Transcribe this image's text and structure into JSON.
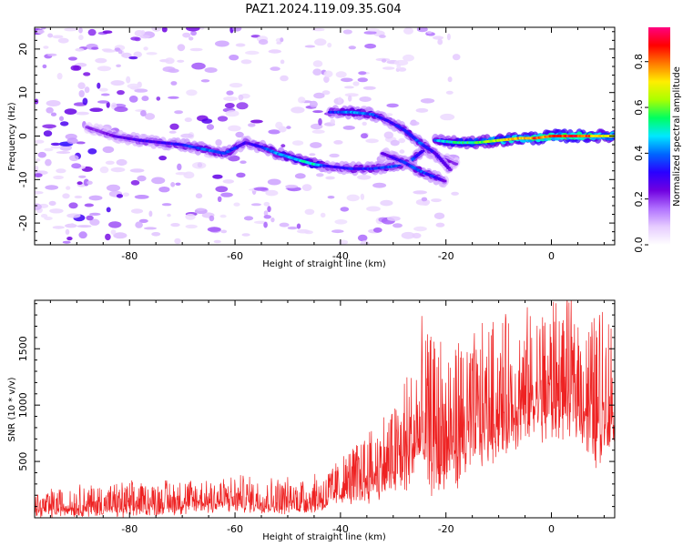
{
  "title": "PAZ1.2024.119.09.35.G04",
  "chart_data": [
    {
      "type": "heatmap",
      "xlabel": "Height of straight line (km)",
      "ylabel": "Frequency (Hz)",
      "xlim": [
        -98,
        12
      ],
      "ylim": [
        -25,
        25
      ],
      "xticks": [
        -80,
        -60,
        -40,
        -20,
        0
      ],
      "yticks": [
        -20,
        -10,
        0,
        10,
        20
      ],
      "colorbar": {
        "label": "Normalized spectral amplitude",
        "range": [
          0,
          0.95
        ],
        "ticks": [
          0.0,
          0.2,
          0.4,
          0.6,
          0.8
        ],
        "colormap": [
          "#ffffff",
          "#e6ccff",
          "#b070ff",
          "#7000e0",
          "#2a00ff",
          "#0066ff",
          "#00e8ff",
          "#00ff60",
          "#aaff00",
          "#ffee00",
          "#ff7a00",
          "#ff0000",
          "#ff0080"
        ]
      },
      "ridges": [
        {
          "x": [
            -88,
            -83,
            -78,
            -74,
            -70,
            -66,
            -62,
            -58,
            -55,
            -52,
            -48,
            -45,
            -42,
            -38,
            -34,
            -30,
            -27,
            -24,
            -21,
            -18
          ],
          "y": [
            2,
            0,
            -1,
            -1.5,
            -2,
            -3,
            -4,
            -1.5,
            -2.5,
            -4,
            -5.5,
            -6.5,
            -7,
            -7.5,
            -7.5,
            -7,
            -6,
            -3,
            -5,
            -6.5
          ],
          "amp": [
            0.2,
            0.25,
            0.3,
            0.3,
            0.35,
            0.4,
            0.4,
            0.3,
            0.35,
            0.45,
            0.5,
            0.55,
            0.3,
            0.35,
            0.35,
            0.4,
            0.4,
            0.3,
            0.3,
            0.2
          ]
        },
        {
          "x": [
            -42,
            -38,
            -34,
            -31,
            -28,
            -25,
            -22,
            -19
          ],
          "y": [
            5.5,
            5.5,
            5,
            3.5,
            1.5,
            -1.5,
            -4,
            -8
          ],
          "amp": [
            0.35,
            0.45,
            0.4,
            0.3,
            0.35,
            0.4,
            0.3,
            0.25
          ]
        },
        {
          "x": [
            -22,
            -18,
            -14,
            -10,
            -6,
            -3,
            0,
            3,
            6,
            9,
            12
          ],
          "y": [
            -1,
            -1.5,
            -1.5,
            -1,
            -0.5,
            -0.5,
            0,
            0,
            0,
            0,
            0
          ],
          "amp": [
            0.45,
            0.55,
            0.6,
            0.7,
            0.8,
            0.85,
            0.85,
            0.9,
            0.9,
            0.75,
            0.7
          ]
        },
        {
          "x": [
            -32,
            -28,
            -25,
            -22,
            -20
          ],
          "y": [
            -4,
            -6,
            -8,
            -9.5,
            -10.5
          ],
          "amp": [
            0.25,
            0.35,
            0.4,
            0.35,
            0.25
          ]
        }
      ]
    },
    {
      "type": "line",
      "xlabel": "Height of straight line (km)",
      "ylabel": "SNR (10 * v/v)",
      "xlim": [
        -98,
        12
      ],
      "ylim": [
        0,
        1930
      ],
      "xticks": [
        -80,
        -60,
        -40,
        -20,
        0
      ],
      "yticks": [
        500,
        1000,
        1500
      ],
      "color": "#ee2222",
      "envelope": {
        "x": [
          -98,
          -90,
          -80,
          -70,
          -60,
          -50,
          -45,
          -43,
          -40,
          -35,
          -30,
          -27,
          -25,
          -20,
          -15,
          -10,
          -5,
          0,
          5,
          8,
          10,
          12
        ],
        "low": [
          0,
          0,
          0,
          20,
          40,
          20,
          30,
          40,
          100,
          120,
          150,
          200,
          250,
          100,
          400,
          500,
          600,
          650,
          700,
          400,
          500,
          550
        ],
        "high": [
          220,
          280,
          300,
          340,
          360,
          340,
          380,
          420,
          520,
          750,
          1000,
          1300,
          1600,
          1550,
          1550,
          1700,
          1750,
          1900,
          1800,
          1750,
          1850,
          1750
        ]
      }
    }
  ]
}
